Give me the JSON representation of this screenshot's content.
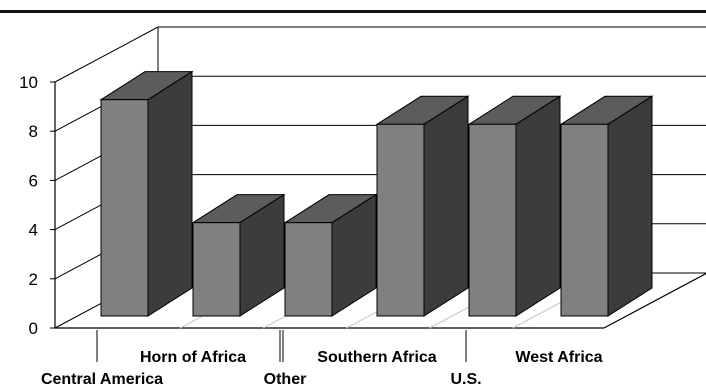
{
  "chart_data": {
    "type": "bar",
    "categories": [
      "Central America",
      "Horn of Africa",
      "Other",
      "Southern Africa",
      "U.S.",
      "West Africa"
    ],
    "values": [
      9.3,
      4.3,
      4.3,
      8.3,
      8.3,
      8.3
    ],
    "ylim": [
      0,
      10
    ],
    "y_ticks": [
      "0",
      "2",
      "4",
      "6",
      "8",
      "10"
    ],
    "grid": true,
    "style": "3d",
    "colors": {
      "front": "#808080",
      "side": "#3c3c3c",
      "top": "#5c5c5c"
    }
  }
}
